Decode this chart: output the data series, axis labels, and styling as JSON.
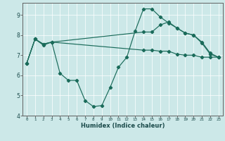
{
  "xlabel": "Humidex (Indice chaleur)",
  "bg_color": "#cce8e8",
  "grid_color": "#ffffff",
  "line_color": "#1a6b5a",
  "xlim": [
    -0.5,
    23.5
  ],
  "ylim": [
    4,
    9.6
  ],
  "yticks": [
    4,
    5,
    6,
    7,
    8,
    9
  ],
  "xtick_labels": [
    "0",
    "1",
    "2",
    "3",
    "4",
    "5",
    "6",
    "7",
    "8",
    "9",
    "10",
    "11",
    "12",
    "13",
    "14",
    "15",
    "16",
    "17",
    "18",
    "19",
    "20",
    "21",
    "22",
    "23"
  ],
  "line1_x": [
    0,
    1,
    2,
    3,
    4,
    5,
    6,
    7,
    8,
    9,
    10,
    11,
    12,
    13,
    14,
    15,
    16,
    17,
    18,
    19,
    20,
    21,
    22,
    23
  ],
  "line1_y": [
    6.6,
    7.8,
    7.5,
    7.65,
    6.1,
    5.75,
    5.75,
    4.75,
    4.45,
    4.5,
    5.4,
    6.4,
    6.9,
    8.2,
    9.3,
    9.3,
    8.9,
    8.6,
    8.35,
    8.1,
    8.0,
    7.6,
    7.05,
    6.9
  ],
  "line2_x": [
    0,
    1,
    2,
    3,
    14,
    15,
    16,
    17,
    18,
    19,
    20,
    21,
    22,
    23
  ],
  "line2_y": [
    6.6,
    7.8,
    7.55,
    7.65,
    8.15,
    8.15,
    8.5,
    8.65,
    8.35,
    8.1,
    8.0,
    7.65,
    7.1,
    6.9
  ],
  "line3_x": [
    0,
    1,
    2,
    3,
    14,
    15,
    16,
    17,
    18,
    19,
    20,
    21,
    22,
    23
  ],
  "line3_y": [
    6.6,
    7.8,
    7.55,
    7.65,
    7.25,
    7.25,
    7.2,
    7.2,
    7.05,
    7.0,
    7.0,
    6.9,
    6.9,
    6.9
  ]
}
